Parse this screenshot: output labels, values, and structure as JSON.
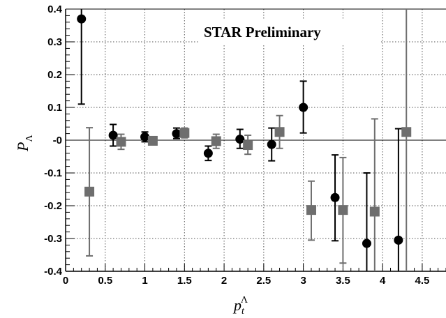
{
  "chart_data": {
    "type": "scatter",
    "title": "STAR Preliminary",
    "xlabel": {
      "base": "p",
      "sub": "t",
      "sup": "Λ"
    },
    "ylabel": {
      "base": "P",
      "sub": "Λ"
    },
    "xlim": [
      0,
      4.8
    ],
    "ylim": [
      -0.4,
      0.4
    ],
    "grid": true,
    "zero_line": true,
    "x_ticks": [
      {
        "value": 0,
        "label": "0"
      },
      {
        "value": 0.5,
        "label": "0.5"
      },
      {
        "value": 1,
        "label": "1"
      },
      {
        "value": 1.5,
        "label": "1.5"
      },
      {
        "value": 2,
        "label": "2"
      },
      {
        "value": 2.5,
        "label": "2.5"
      },
      {
        "value": 3,
        "label": "3"
      },
      {
        "value": 3.5,
        "label": "3.5"
      },
      {
        "value": 4,
        "label": "4"
      },
      {
        "value": 4.5,
        "label": "4.5"
      }
    ],
    "y_ticks": [
      {
        "value": -0.4,
        "label": "-0.4"
      },
      {
        "value": -0.3,
        "label": "-0.3"
      },
      {
        "value": -0.2,
        "label": "-0.2"
      },
      {
        "value": -0.1,
        "label": "-0.1"
      },
      {
        "value": 0,
        "label": "-0"
      },
      {
        "value": 0.1,
        "label": "0.1"
      },
      {
        "value": 0.2,
        "label": "0.2"
      },
      {
        "value": 0.3,
        "label": "0.3"
      },
      {
        "value": 0.4,
        "label": "0.4"
      }
    ],
    "series": [
      {
        "marker": "circle",
        "color": "#000000",
        "points": [
          {
            "x": 0.2,
            "y": 0.37,
            "lo": 0.11,
            "hi": 0.4
          },
          {
            "x": 0.6,
            "y": 0.015,
            "lo": -0.018,
            "hi": 0.048
          },
          {
            "x": 1.0,
            "y": 0.01,
            "lo": -0.005,
            "hi": 0.025
          },
          {
            "x": 1.4,
            "y": 0.02,
            "lo": 0.005,
            "hi": 0.037
          },
          {
            "x": 1.8,
            "y": -0.04,
            "lo": -0.062,
            "hi": -0.018
          },
          {
            "x": 2.2,
            "y": 0.003,
            "lo": -0.025,
            "hi": 0.033
          },
          {
            "x": 2.6,
            "y": -0.013,
            "lo": -0.063,
            "hi": 0.037
          },
          {
            "x": 3.0,
            "y": 0.1,
            "lo": 0.022,
            "hi": 0.18
          },
          {
            "x": 3.4,
            "y": -0.175,
            "lo": -0.307,
            "hi": -0.045
          },
          {
            "x": 3.8,
            "y": -0.315,
            "lo": -0.4,
            "hi": -0.1
          },
          {
            "x": 4.2,
            "y": -0.305,
            "lo": -0.4,
            "hi": 0.035
          }
        ]
      },
      {
        "marker": "square",
        "color": "#6e6e6e",
        "points": [
          {
            "x": 0.3,
            "y": -0.157,
            "lo": -0.353,
            "hi": 0.038
          },
          {
            "x": 0.7,
            "y": -0.005,
            "lo": -0.028,
            "hi": 0.018
          },
          {
            "x": 1.1,
            "y": -0.002,
            "lo": -0.012,
            "hi": 0.008
          },
          {
            "x": 1.5,
            "y": 0.022,
            "lo": 0.007,
            "hi": 0.037
          },
          {
            "x": 1.9,
            "y": -0.003,
            "lo": -0.025,
            "hi": 0.018
          },
          {
            "x": 2.3,
            "y": -0.015,
            "lo": -0.043,
            "hi": 0.015
          },
          {
            "x": 2.7,
            "y": 0.025,
            "lo": -0.025,
            "hi": 0.075
          },
          {
            "x": 3.1,
            "y": -0.213,
            "lo": -0.305,
            "hi": -0.125
          },
          {
            "x": 3.5,
            "y": -0.213,
            "lo": -0.375,
            "hi": -0.053
          },
          {
            "x": 3.9,
            "y": -0.218,
            "lo": -0.4,
            "hi": 0.065
          },
          {
            "x": 4.3,
            "y": 0.025,
            "lo": -0.4,
            "hi": 0.4
          }
        ]
      }
    ]
  }
}
